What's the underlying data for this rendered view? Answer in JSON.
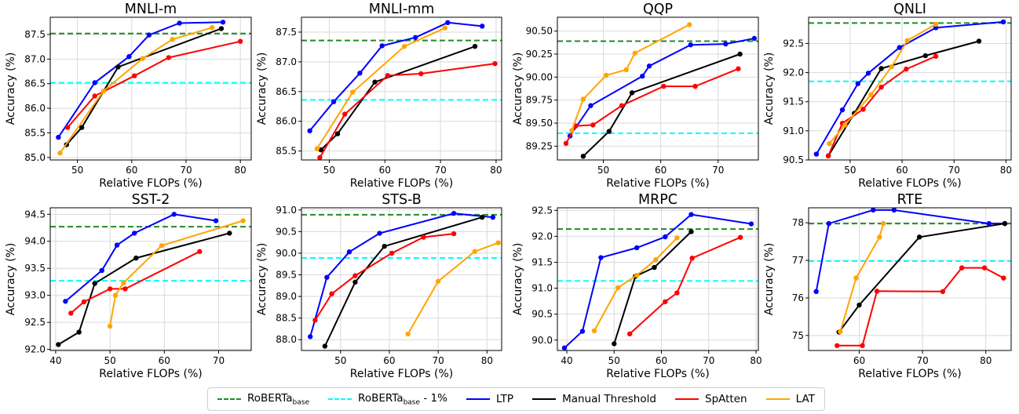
{
  "colors": {
    "ltp": "#0000ff",
    "manual": "#000000",
    "spatten": "#ff0000",
    "lat": "#ffa500",
    "roberta": "#228b22",
    "roberta1": "#00ffff"
  },
  "legend": {
    "roberta_label": "RoBERTa",
    "roberta_sub": "base",
    "roberta1_label": "RoBERTa",
    "roberta1_sub": "base",
    "roberta1_suffix": " - 1%",
    "ltp": "LTP",
    "manual": "Manual Threshold",
    "spatten": "SpAtten",
    "lat": "LAT"
  },
  "chart_data": [
    {
      "type": "line",
      "title": "MNLI-m",
      "xlabel": "Relative FLOPs (%)",
      "ylabel": "Accuracy (%)",
      "xlim": [
        45,
        82
      ],
      "ylim": [
        84.95,
        87.85
      ],
      "xticks": [
        50,
        60,
        70,
        80
      ],
      "yticks": [
        85.0,
        85.5,
        86.0,
        86.5,
        87.0,
        87.5
      ],
      "ytick_labels": [
        "85.0",
        "85.5",
        "86.0",
        "86.5",
        "87.0",
        "87.5"
      ],
      "hlines": {
        "roberta": 87.52,
        "roberta1": 86.52
      },
      "series": [
        {
          "key": "ltp",
          "x": [
            46.5,
            53.2,
            59.5,
            63.2,
            68.8,
            76.8
          ],
          "y": [
            85.41,
            86.52,
            87.05,
            87.49,
            87.73,
            87.75
          ]
        },
        {
          "key": "manual",
          "x": [
            48.0,
            50.8,
            57.5,
            76.5
          ],
          "y": [
            85.26,
            85.61,
            86.84,
            87.62
          ]
        },
        {
          "key": "spatten",
          "x": [
            48.2,
            53.2,
            60.5,
            66.8,
            80.0
          ],
          "y": [
            85.61,
            86.25,
            86.66,
            87.03,
            87.36
          ]
        },
        {
          "key": "lat",
          "x": [
            46.8,
            54.8,
            62.0,
            67.5,
            74.8
          ],
          "y": [
            85.09,
            86.35,
            87.01,
            87.4,
            87.64
          ]
        }
      ]
    },
    {
      "type": "line",
      "title": "MNLI-mm",
      "xlabel": "Relative FLOPs (%)",
      "ylabel": "Accuracy (%)",
      "xlim": [
        45,
        81
      ],
      "ylim": [
        85.35,
        87.75
      ],
      "xticks": [
        50,
        60,
        70,
        80
      ],
      "yticks": [
        85.5,
        86.0,
        86.5,
        87.0,
        87.5
      ],
      "ytick_labels": [
        "85.5",
        "86.0",
        "86.5",
        "87.0",
        "87.5"
      ],
      "hlines": {
        "roberta": 87.36,
        "roberta1": 86.36
      },
      "series": [
        {
          "key": "ltp",
          "x": [
            46.5,
            50.8,
            55.5,
            59.5,
            65.5,
            71.3,
            77.5
          ],
          "y": [
            85.84,
            86.33,
            86.81,
            87.27,
            87.41,
            87.66,
            87.6
          ]
        },
        {
          "key": "manual",
          "x": [
            48.5,
            51.5,
            58.2,
            76.2
          ],
          "y": [
            85.52,
            85.79,
            86.66,
            87.26
          ]
        },
        {
          "key": "spatten",
          "x": [
            48.3,
            52.8,
            60.5,
            66.5,
            79.8
          ],
          "y": [
            85.39,
            86.12,
            86.77,
            86.8,
            86.97
          ]
        },
        {
          "key": "lat",
          "x": [
            47.8,
            54.2,
            63.5,
            70.8
          ],
          "y": [
            85.54,
            86.49,
            87.26,
            87.57
          ]
        }
      ]
    },
    {
      "type": "line",
      "title": "QQP",
      "xlabel": "Relative FLOPs (%)",
      "ylabel": "Accuracy (%)",
      "xlim": [
        42,
        77
      ],
      "ylim": [
        89.1,
        90.65
      ],
      "xticks": [
        50,
        60,
        70
      ],
      "yticks": [
        89.25,
        89.5,
        89.75,
        90.0,
        90.25,
        90.5
      ],
      "ytick_labels": [
        "89.25",
        "89.50",
        "89.75",
        "90.00",
        "90.25",
        "90.50"
      ],
      "hlines": {
        "roberta": 90.39,
        "roberta1": 89.39
      },
      "series": [
        {
          "key": "ltp",
          "x": [
            44.2,
            47.8,
            56.8,
            58.0,
            65.2,
            71.3,
            76.3
          ],
          "y": [
            89.36,
            89.69,
            90.01,
            90.12,
            90.35,
            90.36,
            90.42
          ]
        },
        {
          "key": "manual",
          "x": [
            46.5,
            51.0,
            55.0,
            73.8
          ],
          "y": [
            89.14,
            89.41,
            89.83,
            90.25
          ]
        },
        {
          "key": "spatten",
          "x": [
            43.5,
            45.2,
            48.2,
            53.2,
            60.5,
            66.0,
            73.5
          ],
          "y": [
            89.28,
            89.47,
            89.48,
            89.69,
            89.9,
            89.9,
            90.09
          ]
        },
        {
          "key": "lat",
          "x": [
            44.5,
            46.5,
            50.5,
            54.0,
            55.5,
            65.0
          ],
          "y": [
            89.42,
            89.76,
            90.02,
            90.08,
            90.26,
            90.57
          ]
        }
      ]
    },
    {
      "type": "line",
      "title": "QNLI",
      "xlabel": "Relative FLOPs (%)",
      "ylabel": "Accuracy (%)",
      "xlim": [
        42,
        81
      ],
      "ylim": [
        90.5,
        92.95
      ],
      "xticks": [
        50,
        60,
        70,
        80
      ],
      "yticks": [
        90.5,
        91.0,
        91.5,
        92.0,
        92.5
      ],
      "ytick_labels": [
        "90.5",
        "91.0",
        "91.5",
        "92.0",
        "92.5"
      ],
      "hlines": {
        "roberta": 92.85,
        "roberta1": 91.85
      },
      "series": [
        {
          "key": "ltp",
          "x": [
            43.5,
            48.5,
            51.5,
            53.5,
            59.5,
            66.5,
            79.5
          ],
          "y": [
            90.6,
            91.36,
            91.81,
            91.99,
            92.43,
            92.77,
            92.87
          ]
        },
        {
          "key": "manual",
          "x": [
            45.8,
            50.8,
            56.0,
            64.5,
            74.8
          ],
          "y": [
            90.57,
            91.3,
            92.07,
            92.29,
            92.54
          ]
        },
        {
          "key": "spatten",
          "x": [
            45.8,
            48.5,
            52.5,
            56.0,
            60.8,
            66.5
          ],
          "y": [
            90.57,
            91.13,
            91.37,
            91.75,
            92.06,
            92.28
          ]
        },
        {
          "key": "lat",
          "x": [
            46.0,
            49.0,
            54.0,
            58.0,
            61.0,
            66.5
          ],
          "y": [
            90.78,
            91.1,
            91.62,
            92.1,
            92.55,
            92.83
          ]
        }
      ]
    },
    {
      "type": "line",
      "title": "SST-2",
      "xlabel": "Relative FLOPs (%)",
      "ylabel": "Accuracy (%)",
      "xlim": [
        39,
        76
      ],
      "ylim": [
        91.98,
        94.62
      ],
      "xticks": [
        40,
        50,
        60,
        70
      ],
      "yticks": [
        92.0,
        92.5,
        93.0,
        93.5,
        94.0,
        94.5
      ],
      "ytick_labels": [
        "92.0",
        "92.5",
        "93.0",
        "93.5",
        "94.0",
        "94.5"
      ],
      "hlines": {
        "roberta": 94.27,
        "roberta1": 93.27
      },
      "series": [
        {
          "key": "ltp",
          "x": [
            41.8,
            48.5,
            51.3,
            54.5,
            61.8,
            69.5
          ],
          "y": [
            92.89,
            93.46,
            93.93,
            94.15,
            94.5,
            94.38
          ]
        },
        {
          "key": "manual",
          "x": [
            40.5,
            44.3,
            47.2,
            54.8,
            72.0
          ],
          "y": [
            92.09,
            92.32,
            93.22,
            93.69,
            94.15
          ]
        },
        {
          "key": "spatten",
          "x": [
            42.8,
            45.2,
            50.0,
            52.8,
            66.5
          ],
          "y": [
            92.67,
            92.88,
            93.12,
            93.12,
            93.81
          ]
        },
        {
          "key": "lat",
          "x": [
            50.0,
            51.0,
            52.5,
            59.5,
            74.5
          ],
          "y": [
            92.43,
            93.0,
            93.23,
            93.92,
            94.38
          ]
        }
      ]
    },
    {
      "type": "line",
      "title": "STS-B",
      "xlabel": "Relative FLOPs (%)",
      "ylabel": "Accuracy (%)",
      "xlim": [
        42,
        83
      ],
      "ylim": [
        87.75,
        91.05
      ],
      "xticks": [
        50,
        60,
        70,
        80
      ],
      "yticks": [
        88.0,
        88.5,
        89.0,
        89.5,
        90.0,
        90.5,
        91.0
      ],
      "ytick_labels": [
        "88.0",
        "88.5",
        "89.0",
        "89.5",
        "90.0",
        "90.5",
        "91.0"
      ],
      "hlines": {
        "roberta": 90.89,
        "roberta1": 89.89
      },
      "series": [
        {
          "key": "ltp",
          "x": [
            43.8,
            47.2,
            51.8,
            58.0,
            73.2,
            81.2
          ],
          "y": [
            88.07,
            89.44,
            90.03,
            90.46,
            90.92,
            90.83
          ]
        },
        {
          "key": "manual",
          "x": [
            46.8,
            53.0,
            59.0,
            79.0
          ],
          "y": [
            87.85,
            89.33,
            90.16,
            90.83
          ]
        },
        {
          "key": "spatten",
          "x": [
            44.8,
            48.2,
            53.0,
            60.5,
            67.0,
            73.2
          ],
          "y": [
            88.45,
            89.06,
            89.48,
            90.0,
            90.37,
            90.45
          ]
        },
        {
          "key": "lat",
          "x": [
            63.8,
            70.0,
            77.5,
            82.3
          ],
          "y": [
            88.13,
            89.35,
            90.04,
            90.24
          ]
        }
      ]
    },
    {
      "type": "line",
      "title": "MRPC",
      "xlabel": "Relative FLOPs (%)",
      "ylabel": "Accuracy (%)",
      "xlim": [
        38,
        80.5
      ],
      "ylim": [
        89.8,
        92.55
      ],
      "xticks": [
        40,
        50,
        60,
        70,
        80
      ],
      "yticks": [
        90.0,
        90.5,
        91.0,
        91.5,
        92.0,
        92.5
      ],
      "ytick_labels": [
        "90.0",
        "90.5",
        "91.0",
        "91.5",
        "92.0",
        "92.5"
      ],
      "hlines": {
        "roberta": 92.14,
        "roberta1": 91.14
      },
      "series": [
        {
          "key": "ltp",
          "x": [
            39.5,
            43.3,
            47.2,
            54.8,
            60.8,
            66.3,
            79.0
          ],
          "y": [
            89.85,
            90.17,
            91.59,
            91.78,
            91.99,
            92.42,
            92.24
          ]
        },
        {
          "key": "manual",
          "x": [
            50.0,
            54.5,
            58.5,
            66.3
          ],
          "y": [
            89.93,
            91.23,
            91.4,
            92.09
          ]
        },
        {
          "key": "spatten",
          "x": [
            53.3,
            60.8,
            63.3,
            66.5,
            76.7
          ],
          "y": [
            90.12,
            90.74,
            90.91,
            91.58,
            91.98
          ]
        },
        {
          "key": "lat",
          "x": [
            45.8,
            50.8,
            54.8,
            58.8,
            63.3
          ],
          "y": [
            90.18,
            91.01,
            91.25,
            91.55,
            91.97
          ]
        }
      ]
    },
    {
      "type": "line",
      "title": "RTE",
      "xlabel": "Relative FLOPs (%)",
      "ylabel": "Accuracy (%)",
      "xlim": [
        52,
        84
      ],
      "ylim": [
        74.6,
        78.4
      ],
      "xticks": [
        60,
        70,
        80
      ],
      "yticks": [
        75,
        76,
        77,
        78
      ],
      "ytick_labels": [
        "75",
        "76",
        "77",
        "78"
      ],
      "hlines": {
        "roberta": 77.98,
        "roberta1": 76.98
      },
      "series": [
        {
          "key": "ltp",
          "x": [
            53.2,
            55.2,
            62.2,
            65.5,
            80.5,
            83.0
          ],
          "y": [
            76.17,
            77.98,
            78.34,
            78.34,
            77.98,
            77.98
          ]
        },
        {
          "key": "manual",
          "x": [
            56.8,
            60.0,
            69.5,
            83.0
          ],
          "y": [
            75.09,
            75.81,
            77.62,
            77.98
          ]
        },
        {
          "key": "spatten",
          "x": [
            56.5,
            60.5,
            62.8,
            73.2,
            76.2,
            79.8,
            82.8
          ],
          "y": [
            74.73,
            74.73,
            76.18,
            76.17,
            76.8,
            76.8,
            76.53
          ]
        },
        {
          "key": "lat",
          "x": [
            57.0,
            59.5,
            63.2,
            63.8
          ],
          "y": [
            75.1,
            76.53,
            77.62,
            77.98
          ]
        }
      ]
    }
  ]
}
